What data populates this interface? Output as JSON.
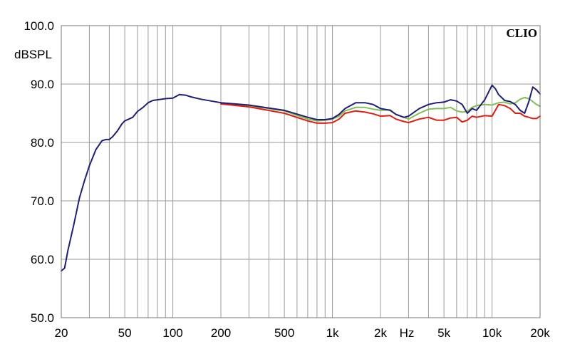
{
  "chart_data": {
    "type": "line",
    "brand": "CLIO",
    "ylabel": "dBSPL",
    "xlabel": "Hz",
    "xscale": "log",
    "xlim": [
      20,
      20000
    ],
    "ylim": [
      50,
      100
    ],
    "grid": true,
    "y_ticks": [
      "50.0",
      "60.0",
      "70.0",
      "80.0",
      "90.0",
      "100.0"
    ],
    "y_tick_values": [
      50,
      60,
      70,
      80,
      90,
      100
    ],
    "x_tick_labels": [
      "20",
      "50",
      "100",
      "200",
      "500",
      "1k",
      "2k",
      "5k",
      "10k",
      "20k"
    ],
    "x_tick_values": [
      20,
      50,
      100,
      200,
      500,
      1000,
      2000,
      5000,
      10000,
      20000
    ],
    "series": [
      {
        "color": "#1f1f7a",
        "x": [
          20,
          21,
          22,
          24,
          26,
          28,
          30,
          33,
          36,
          38,
          40,
          42,
          45,
          48,
          50,
          53,
          56,
          60,
          65,
          70,
          75,
          80,
          90,
          100,
          110,
          120,
          130,
          150,
          200,
          300,
          500,
          700,
          800,
          900,
          1000,
          1100,
          1200,
          1400,
          1600,
          1800,
          2000,
          2300,
          2500,
          2800,
          3000,
          3500,
          4000,
          4500,
          5000,
          5500,
          6000,
          6500,
          7000,
          7500,
          8000,
          9000,
          10000,
          10500,
          11000,
          12000,
          13000,
          14000,
          15000,
          16000,
          17000,
          18000,
          19000,
          20000
        ],
        "y": [
          58.0,
          58.5,
          61.5,
          66.0,
          70.5,
          73.5,
          76.0,
          78.8,
          80.3,
          80.5,
          80.5,
          81.0,
          82.0,
          83.2,
          83.7,
          84.0,
          84.3,
          85.3,
          86.0,
          86.8,
          87.2,
          87.3,
          87.5,
          87.6,
          88.2,
          88.1,
          87.8,
          87.4,
          86.8,
          86.4,
          85.5,
          84.3,
          83.9,
          83.9,
          84.1,
          84.8,
          85.8,
          86.8,
          86.8,
          86.5,
          85.8,
          85.5,
          84.8,
          84.3,
          84.5,
          85.8,
          86.5,
          86.8,
          86.9,
          87.3,
          87.1,
          86.5,
          85.0,
          85.8,
          85.5,
          87.3,
          89.8,
          89.2,
          88.2,
          87.2,
          87.0,
          86.5,
          85.5,
          85.0,
          87.0,
          89.5,
          89.0,
          88.3
        ]
      },
      {
        "color": "#e01b10",
        "x": [
          200,
          300,
          500,
          700,
          800,
          900,
          1000,
          1100,
          1200,
          1400,
          1600,
          1800,
          2000,
          2300,
          2500,
          2800,
          3000,
          3500,
          4000,
          4500,
          5000,
          5500,
          6000,
          6500,
          7000,
          7500,
          8000,
          9000,
          10000,
          11000,
          12000,
          13000,
          14000,
          15000,
          16000,
          17000,
          18000,
          19000,
          20000
        ],
        "y": [
          86.6,
          86.1,
          85.0,
          83.7,
          83.3,
          83.3,
          83.4,
          84.0,
          85.0,
          85.4,
          85.2,
          84.9,
          84.5,
          84.6,
          84.0,
          83.6,
          83.4,
          84.0,
          84.3,
          83.8,
          83.8,
          84.2,
          84.3,
          83.5,
          83.8,
          84.5,
          84.3,
          84.6,
          84.5,
          86.5,
          86.3,
          85.8,
          85.0,
          85.0,
          84.5,
          84.3,
          84.1,
          84.1,
          84.5
        ]
      },
      {
        "color": "#7fc056",
        "x": [
          200,
          300,
          500,
          700,
          800,
          900,
          1000,
          1100,
          1200,
          1400,
          1600,
          1800,
          2000,
          2300,
          2500,
          2800,
          3000,
          3500,
          4000,
          4500,
          5000,
          5500,
          6000,
          6500,
          7000,
          7500,
          8000,
          9000,
          10000,
          11000,
          12000,
          13000,
          14000,
          15000,
          16000,
          17000,
          18000,
          19000,
          20000
        ],
        "y": [
          86.7,
          86.3,
          85.4,
          84.0,
          83.7,
          83.8,
          84.0,
          84.5,
          85.4,
          86.0,
          86.0,
          85.7,
          85.5,
          85.6,
          84.8,
          84.3,
          84.0,
          85.0,
          85.7,
          85.8,
          85.8,
          86.0,
          85.4,
          85.2,
          85.3,
          86.0,
          86.3,
          86.5,
          86.4,
          86.8,
          86.9,
          86.6,
          86.8,
          87.4,
          87.7,
          87.5,
          87.0,
          86.5,
          86.2
        ]
      }
    ]
  }
}
